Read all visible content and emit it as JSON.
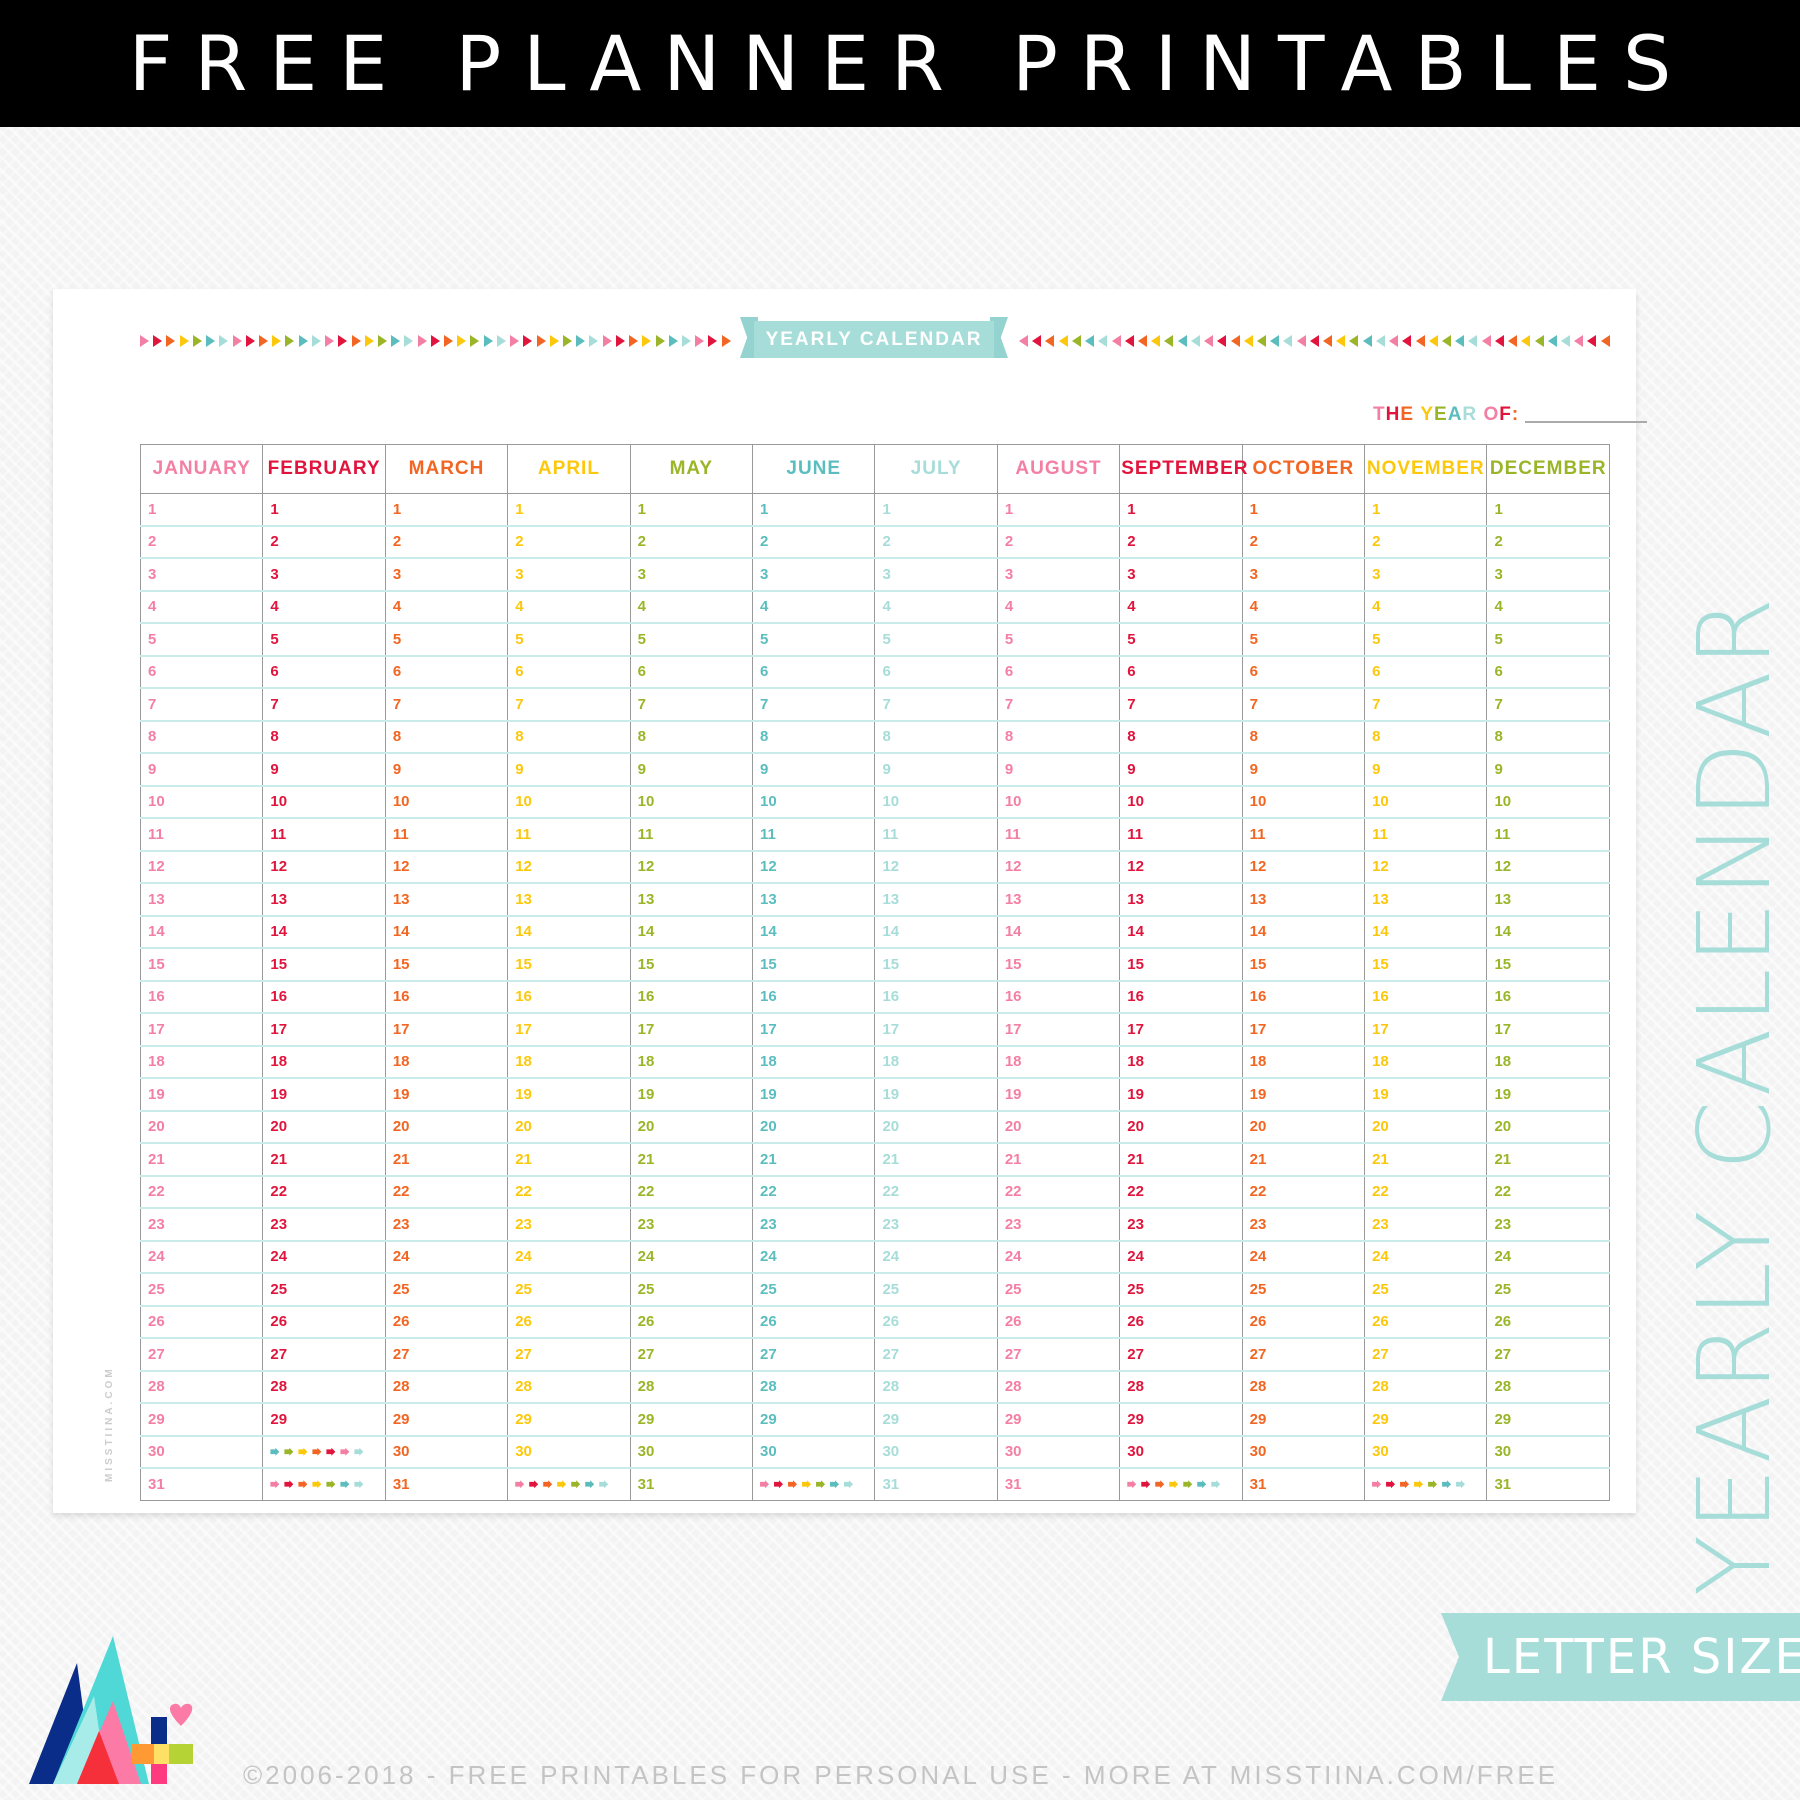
{
  "header": {
    "title": "FREE PLANNER PRINTABLES"
  },
  "banner": {
    "title": "YEARLY CALENDAR"
  },
  "year_of": {
    "letters": [
      "T",
      "H",
      "E",
      " ",
      "Y",
      "E",
      "A",
      "R",
      " ",
      "O",
      "F",
      ":"
    ],
    "value": ""
  },
  "palette": [
    "#f47fa4",
    "#e0143c",
    "#f26522",
    "#fcc80c",
    "#9ab528",
    "#5bbdbe",
    "#a6ddd9"
  ],
  "months": [
    {
      "name": "JANUARY",
      "color": "#f47fa4",
      "days": 31
    },
    {
      "name": "FEBRUARY",
      "color": "#e0143c",
      "days": 29
    },
    {
      "name": "MARCH",
      "color": "#f26522",
      "days": 31
    },
    {
      "name": "APRIL",
      "color": "#fcc80c",
      "days": 30
    },
    {
      "name": "MAY",
      "color": "#9ab528",
      "days": 31
    },
    {
      "name": "JUNE",
      "color": "#5bbdbe",
      "days": 30
    },
    {
      "name": "JULY",
      "color": "#a6ddd9",
      "days": 31
    },
    {
      "name": "AUGUST",
      "color": "#f47fa4",
      "days": 31
    },
    {
      "name": "SEPTEMBER",
      "color": "#e0143c",
      "days": 30
    },
    {
      "name": "OCTOBER",
      "color": "#f26522",
      "days": 31
    },
    {
      "name": "NOVEMBER",
      "color": "#fcc80c",
      "days": 30
    },
    {
      "name": "DECEMBER",
      "color": "#9ab528",
      "days": 31
    }
  ],
  "side_text": "YEARLY CALENDAR",
  "size_badge": "LETTER SIZE",
  "watermark": "MISSTIINA.COM",
  "footer": "©2006-2018 - FREE PRINTABLES FOR PERSONAL USE - MORE AT MISSTIINA.COM/FREE",
  "logo": {
    "icon": "misstiina-logo"
  }
}
